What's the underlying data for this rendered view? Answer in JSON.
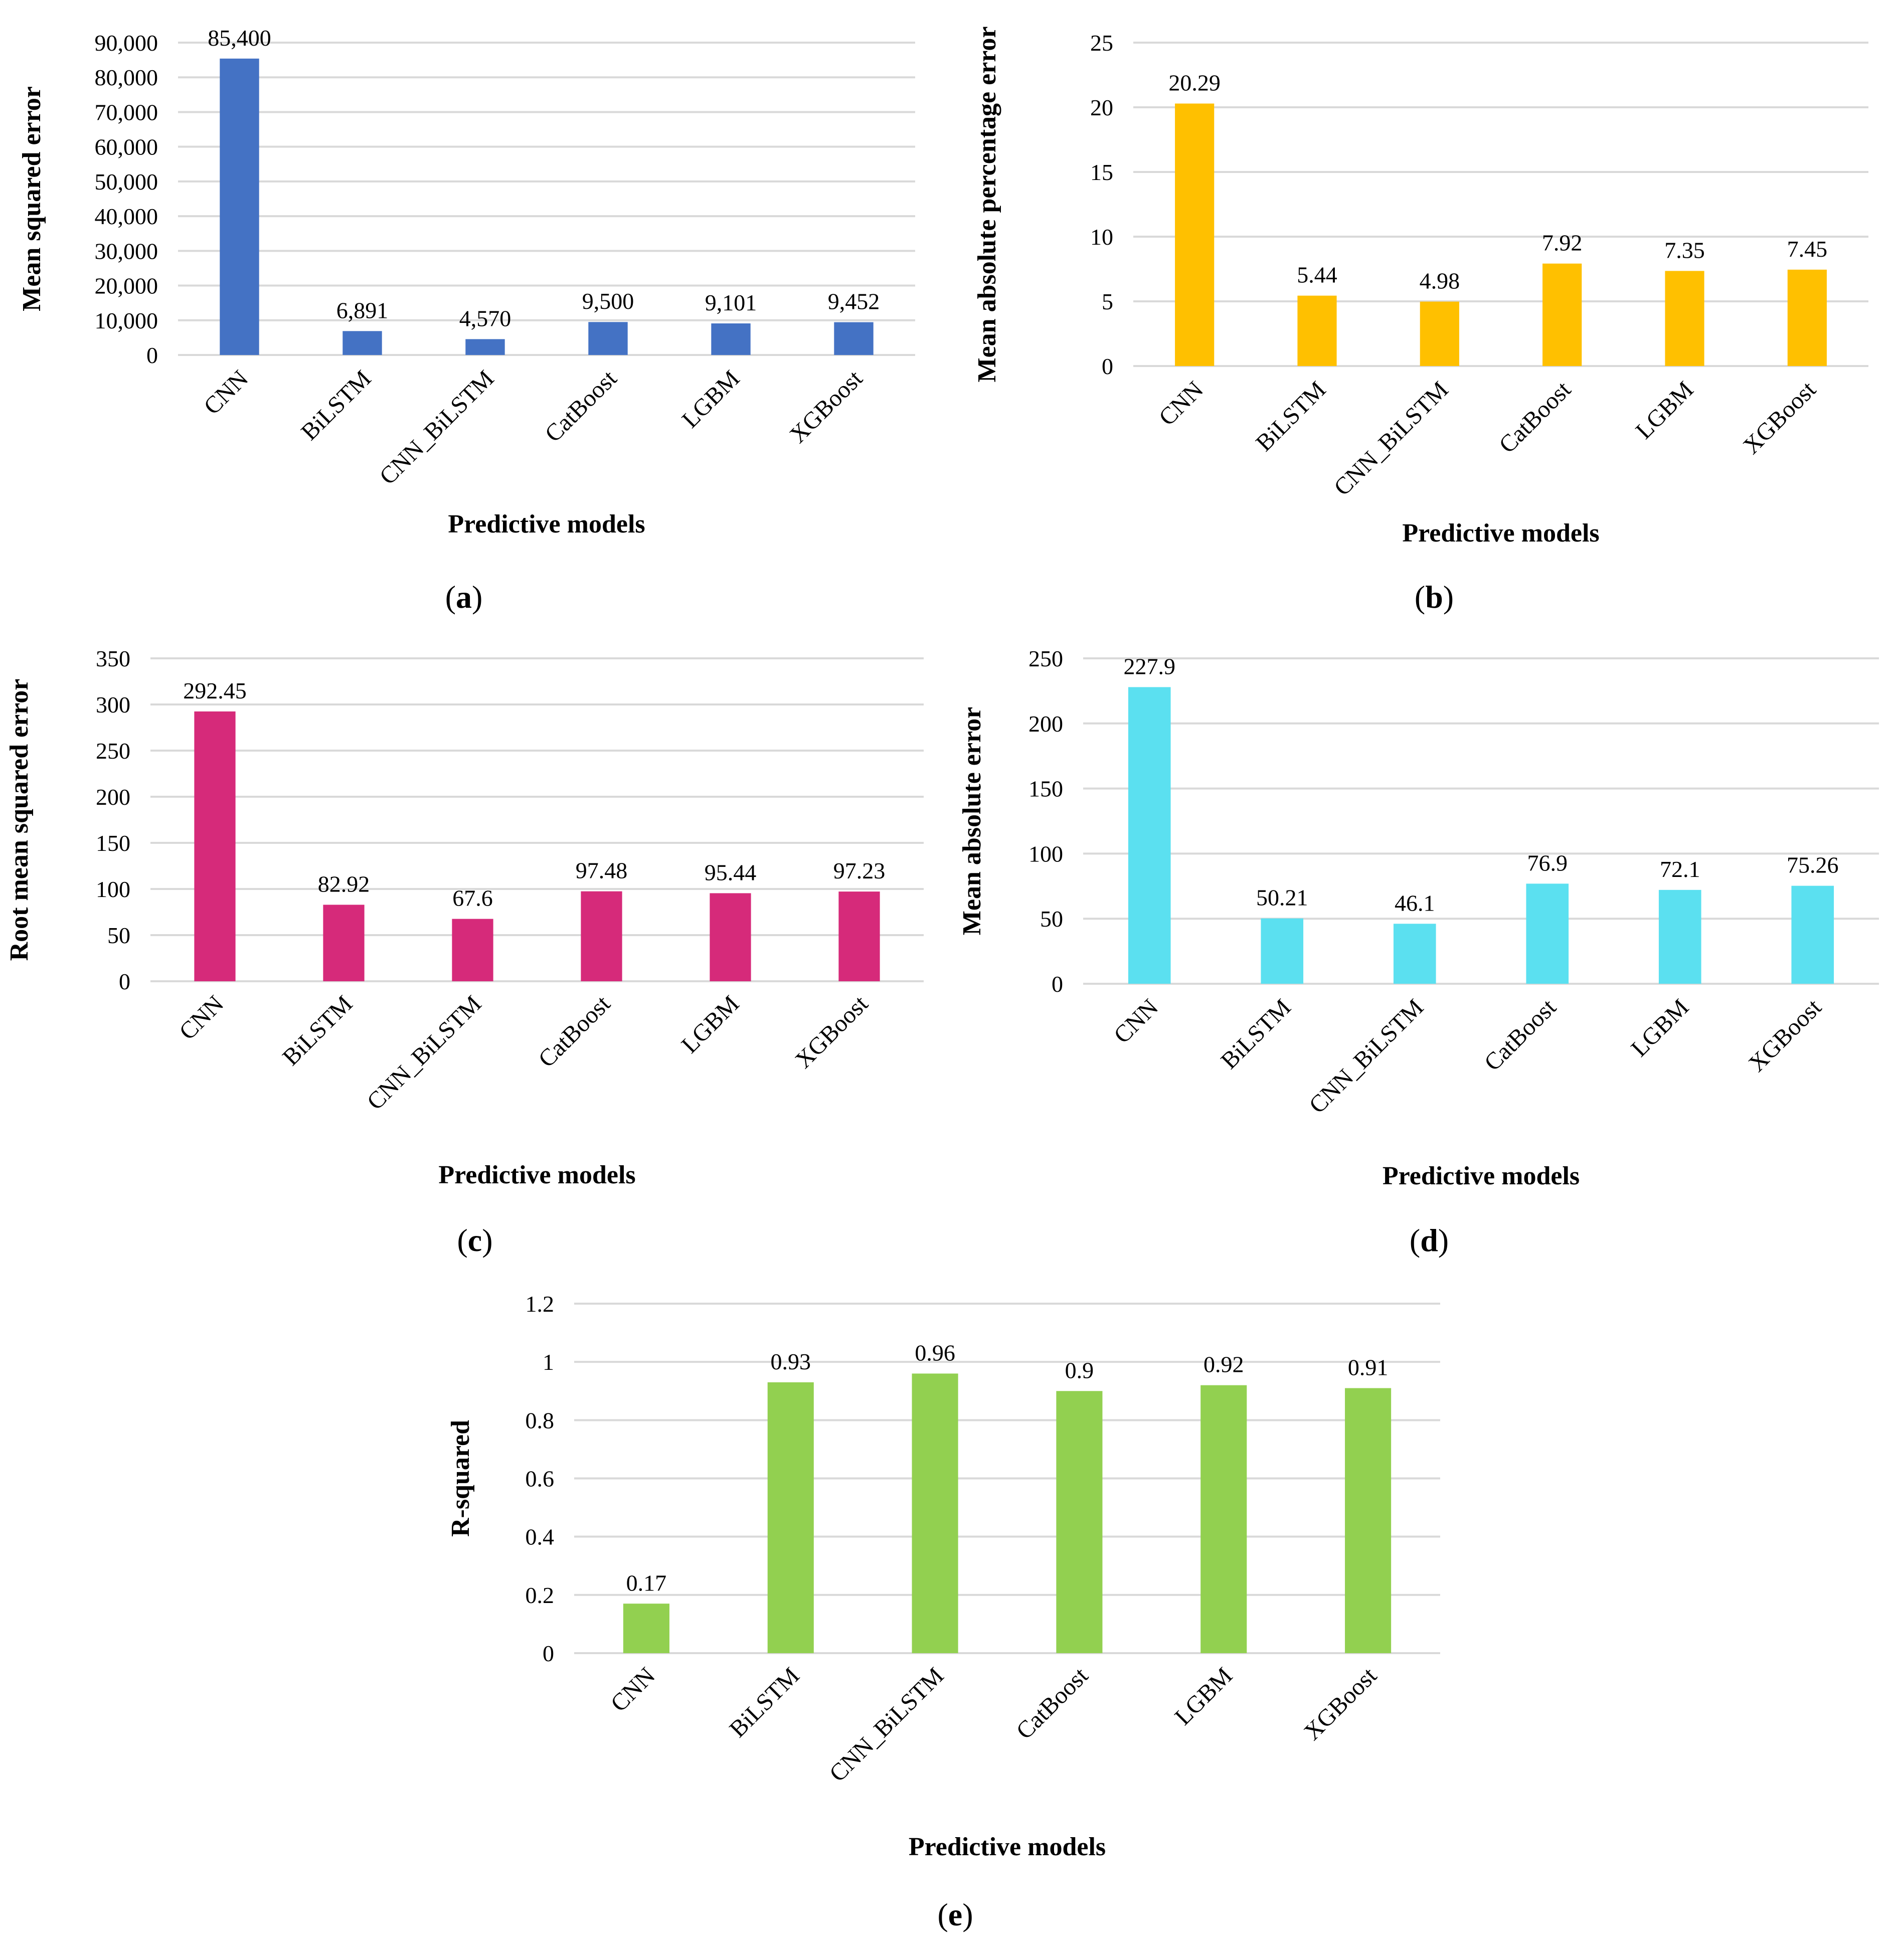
{
  "chart_data": [
    {
      "id": "a",
      "type": "bar",
      "panel_label": "a",
      "categories": [
        "CNN",
        "BiLSTM",
        "CNN_BiLSTM",
        "CatBoost",
        "LGBM",
        "XGBoost"
      ],
      "values": [
        85400,
        6891,
        4570,
        9500,
        9101,
        9452
      ],
      "data_labels": [
        "85,400",
        "6,891",
        "4,570",
        "9,500",
        "9,101",
        "9,452"
      ],
      "yticks": [
        "0",
        "10,000",
        "20,000",
        "30,000",
        "40,000",
        "50,000",
        "60,000",
        "70,000",
        "80,000",
        "90,000"
      ],
      "ylim": [
        0,
        90000
      ],
      "ystep": 10000,
      "ylabel": "Mean squared error",
      "xlabel": "Predictive models",
      "color": "#4472C4"
    },
    {
      "id": "b",
      "type": "bar",
      "panel_label": "b",
      "categories": [
        "CNN",
        "BiLSTM",
        "CNN_BiLSTM",
        "CatBoost",
        "LGBM",
        "XGBoost"
      ],
      "values": [
        20.29,
        5.44,
        4.98,
        7.92,
        7.35,
        7.45
      ],
      "data_labels": [
        "20.29",
        "5.44",
        "4.98",
        "7.92",
        "7.35",
        "7.45"
      ],
      "yticks": [
        "0",
        "5",
        "10",
        "15",
        "20",
        "25"
      ],
      "ylim": [
        0,
        25
      ],
      "ystep": 5,
      "ylabel": "Mean absolute percentage error",
      "xlabel": "Predictive models",
      "color": "#FFC000"
    },
    {
      "id": "c",
      "type": "bar",
      "panel_label": "c",
      "categories": [
        "CNN",
        "BiLSTM",
        "CNN_BiLSTM",
        "CatBoost",
        "LGBM",
        "XGBoost"
      ],
      "values": [
        292.45,
        82.92,
        67.6,
        97.48,
        95.44,
        97.23
      ],
      "data_labels": [
        "292.45",
        "82.92",
        "67.6",
        "97.48",
        "95.44",
        "97.23"
      ],
      "yticks": [
        "0",
        "50",
        "100",
        "150",
        "200",
        "250",
        "300",
        "350"
      ],
      "ylim": [
        0,
        350
      ],
      "ystep": 50,
      "ylabel": "Root mean squared error",
      "xlabel": "Predictive models",
      "color": "#D62A7A"
    },
    {
      "id": "d",
      "type": "bar",
      "panel_label": "d",
      "categories": [
        "CNN",
        "BiLSTM",
        "CNN_BiLSTM",
        "CatBoost",
        "LGBM",
        "XGBoost"
      ],
      "values": [
        227.9,
        50.21,
        46.1,
        76.9,
        72.1,
        75.26
      ],
      "data_labels": [
        "227.9",
        "50.21",
        "46.1",
        "76.9",
        "72.1",
        "75.26"
      ],
      "yticks": [
        "0",
        "50",
        "100",
        "150",
        "200",
        "250"
      ],
      "ylim": [
        0,
        250
      ],
      "ystep": 50,
      "ylabel": "Mean absolute error",
      "xlabel": "Predictive models",
      "color": "#5BE0F0"
    },
    {
      "id": "e",
      "type": "bar",
      "panel_label": "e",
      "categories": [
        "CNN",
        "BiLSTM",
        "CNN_BiLSTM",
        "CatBoost",
        "LGBM",
        "XGBoost"
      ],
      "values": [
        0.17,
        0.93,
        0.96,
        0.9,
        0.92,
        0.91
      ],
      "data_labels": [
        "0.17",
        "0.93",
        "0.96",
        "0.9",
        "0.92",
        "0.91"
      ],
      "yticks": [
        "0",
        "0.2",
        "0.4",
        "0.6",
        "0.8",
        "1",
        "1.2"
      ],
      "ylim": [
        0,
        1.2
      ],
      "ystep": 0.2,
      "ylabel": "R-squared",
      "xlabel": "Predictive models",
      "color": "#92D050"
    }
  ]
}
